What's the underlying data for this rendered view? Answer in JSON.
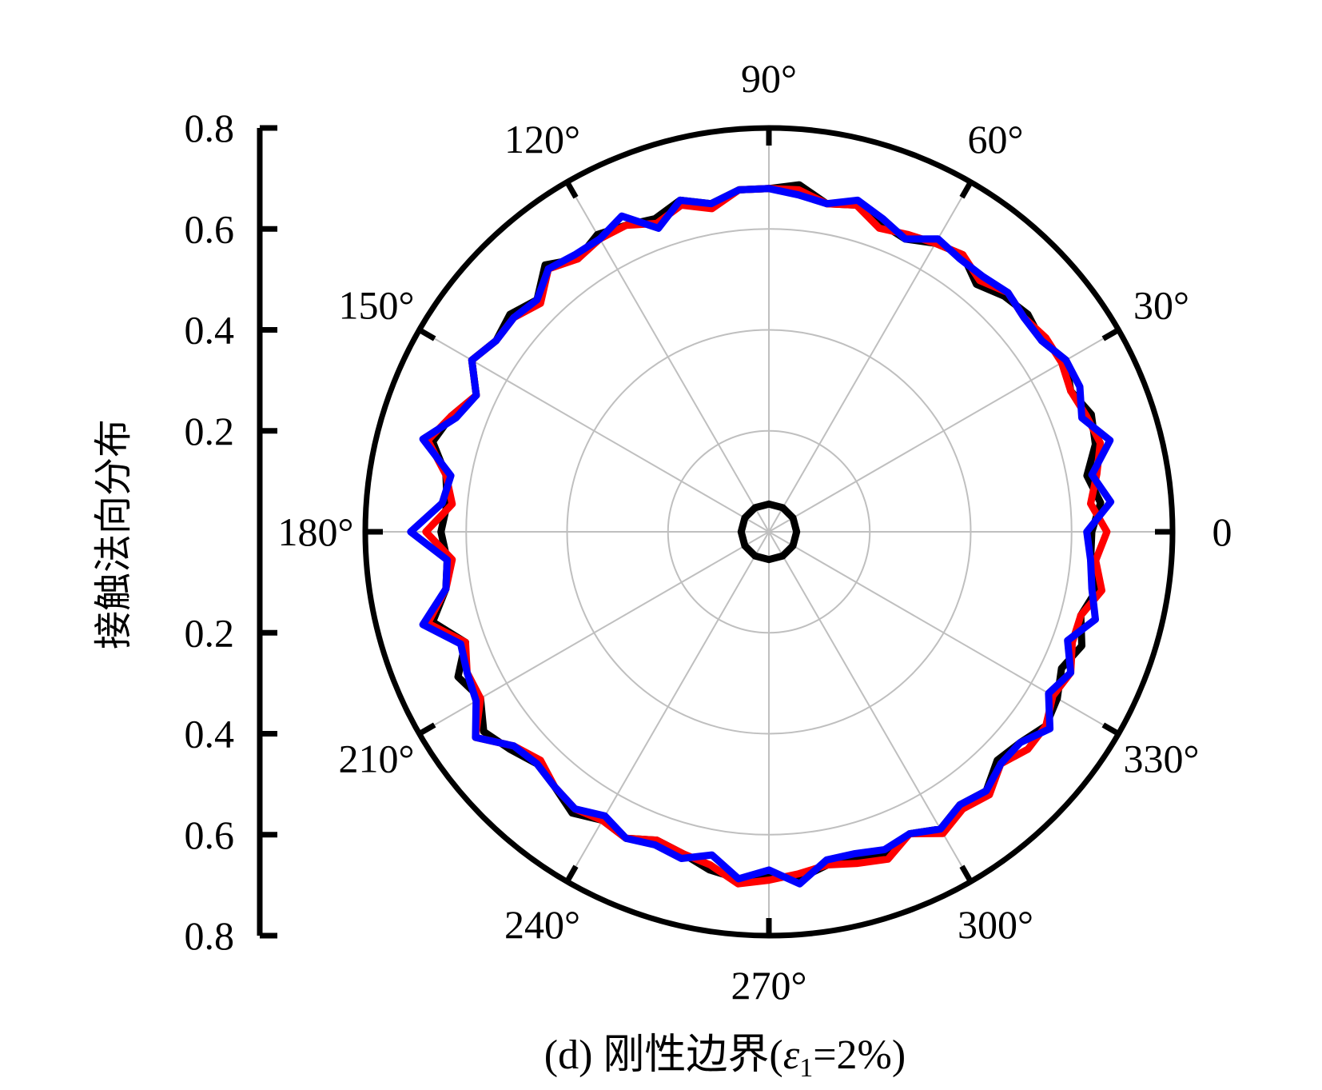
{
  "chart_data": {
    "type": "polar",
    "ylabel": "接触法向分布",
    "caption": {
      "prefix": "(d) 刚性边界(",
      "symbol": "ε",
      "subscript": "1",
      "suffix": "=2%)"
    },
    "radial_range": [
      0,
      0.8
    ],
    "radial_ticks": [
      0,
      0.2,
      0.4,
      0.6,
      0.8
    ],
    "radial_tick_labels_upper": [
      "0.8",
      "0.6",
      "0.4",
      "0.2"
    ],
    "radial_tick_labels_lower": [
      "0.2",
      "0.4",
      "0.6",
      "0.8"
    ],
    "angle_labels": [
      {
        "deg": 0,
        "text": "0"
      },
      {
        "deg": 30,
        "text": "30°"
      },
      {
        "deg": 60,
        "text": "60°"
      },
      {
        "deg": 90,
        "text": "90°"
      },
      {
        "deg": 120,
        "text": "120°"
      },
      {
        "deg": 150,
        "text": "150°"
      },
      {
        "deg": 180,
        "text": "180°"
      },
      {
        "deg": 210,
        "text": "210°"
      },
      {
        "deg": 240,
        "text": "240°"
      },
      {
        "deg": 270,
        "text": "270°"
      },
      {
        "deg": 300,
        "text": "300°"
      },
      {
        "deg": 330,
        "text": "330°"
      }
    ],
    "grid": true,
    "series": [
      {
        "color": "#000000",
        "angles": [
          0,
          5,
          10,
          15,
          20,
          25,
          30,
          35,
          40,
          45,
          50,
          55,
          60,
          65,
          70,
          75,
          80,
          85,
          90,
          95,
          100,
          105,
          110,
          115,
          120,
          125,
          130,
          135,
          140,
          145,
          150,
          155,
          160,
          165,
          170,
          175,
          180,
          185,
          190,
          195,
          200,
          205,
          210,
          215,
          220,
          225,
          230,
          235,
          240,
          245,
          250,
          255,
          260,
          265,
          270,
          275,
          280,
          285,
          290,
          295,
          300,
          305,
          310,
          315,
          320,
          325,
          330,
          335,
          340,
          345,
          350,
          355
        ],
        "values": [
          0.64,
          0.66,
          0.64,
          0.67,
          0.68,
          0.66,
          0.68,
          0.66,
          0.67,
          0.66,
          0.64,
          0.67,
          0.66,
          0.64,
          0.65,
          0.67,
          0.66,
          0.69,
          0.68,
          0.68,
          0.66,
          0.68,
          0.66,
          0.67,
          0.68,
          0.66,
          0.69,
          0.65,
          0.67,
          0.66,
          0.68,
          0.64,
          0.67,
          0.69,
          0.65,
          0.64,
          0.65,
          0.64,
          0.65,
          0.69,
          0.64,
          0.68,
          0.66,
          0.69,
          0.67,
          0.65,
          0.66,
          0.68,
          0.66,
          0.67,
          0.65,
          0.66,
          0.68,
          0.69,
          0.68,
          0.69,
          0.67,
          0.67,
          0.68,
          0.66,
          0.68,
          0.66,
          0.67,
          0.64,
          0.65,
          0.67,
          0.66,
          0.64,
          0.66,
          0.64,
          0.66,
          0.64
        ]
      },
      {
        "color": "#ff0000",
        "angles": [
          0,
          5,
          10,
          15,
          20,
          25,
          30,
          35,
          40,
          45,
          50,
          55,
          60,
          65,
          70,
          75,
          80,
          85,
          90,
          95,
          100,
          105,
          110,
          115,
          120,
          125,
          130,
          135,
          140,
          145,
          150,
          155,
          160,
          165,
          170,
          175,
          180,
          185,
          190,
          195,
          200,
          205,
          210,
          215,
          220,
          225,
          230,
          235,
          240,
          245,
          250,
          255,
          260,
          265,
          270,
          275,
          280,
          285,
          290,
          295,
          300,
          305,
          310,
          315,
          320,
          325,
          330,
          335,
          340,
          345,
          350,
          355
        ],
        "values": [
          0.67,
          0.64,
          0.66,
          0.68,
          0.67,
          0.66,
          0.67,
          0.67,
          0.66,
          0.67,
          0.65,
          0.67,
          0.66,
          0.65,
          0.64,
          0.67,
          0.66,
          0.68,
          0.68,
          0.68,
          0.65,
          0.67,
          0.65,
          0.67,
          0.67,
          0.66,
          0.68,
          0.64,
          0.66,
          0.66,
          0.68,
          0.64,
          0.67,
          0.7,
          0.65,
          0.63,
          0.68,
          0.63,
          0.65,
          0.7,
          0.64,
          0.66,
          0.66,
          0.71,
          0.66,
          0.64,
          0.66,
          0.67,
          0.66,
          0.67,
          0.65,
          0.66,
          0.67,
          0.7,
          0.69,
          0.68,
          0.67,
          0.68,
          0.69,
          0.66,
          0.69,
          0.67,
          0.68,
          0.65,
          0.67,
          0.67,
          0.65,
          0.66,
          0.64,
          0.64,
          0.67,
          0.65
        ]
      },
      {
        "color": "#0000ff",
        "angles": [
          0,
          5,
          10,
          15,
          20,
          25,
          30,
          35,
          40,
          45,
          50,
          55,
          60,
          65,
          70,
          75,
          80,
          85,
          90,
          95,
          100,
          105,
          110,
          115,
          120,
          125,
          130,
          135,
          140,
          145,
          150,
          155,
          160,
          165,
          170,
          175,
          180,
          185,
          190,
          195,
          200,
          205,
          210,
          215,
          220,
          225,
          230,
          235,
          240,
          245,
          250,
          255,
          260,
          265,
          270,
          275,
          280,
          285,
          290,
          295,
          300,
          305,
          310,
          315,
          320,
          325,
          330,
          335,
          340,
          345,
          350,
          355
        ],
        "values": [
          0.63,
          0.68,
          0.65,
          0.7,
          0.66,
          0.68,
          0.68,
          0.66,
          0.66,
          0.67,
          0.66,
          0.66,
          0.67,
          0.64,
          0.66,
          0.68,
          0.66,
          0.67,
          0.68,
          0.68,
          0.66,
          0.68,
          0.64,
          0.69,
          0.67,
          0.67,
          0.68,
          0.65,
          0.66,
          0.66,
          0.68,
          0.64,
          0.66,
          0.71,
          0.64,
          0.65,
          0.71,
          0.64,
          0.65,
          0.71,
          0.65,
          0.66,
          0.67,
          0.71,
          0.66,
          0.65,
          0.66,
          0.67,
          0.65,
          0.67,
          0.66,
          0.67,
          0.65,
          0.69,
          0.67,
          0.7,
          0.66,
          0.66,
          0.67,
          0.66,
          0.68,
          0.66,
          0.67,
          0.65,
          0.65,
          0.68,
          0.64,
          0.66,
          0.63,
          0.67,
          0.65,
          0.64
        ]
      },
      {
        "color": "#000000",
        "angles": [
          0,
          30,
          60,
          90,
          120,
          150,
          180,
          210,
          240,
          270,
          300,
          330
        ],
        "values": [
          0.055,
          0.055,
          0.055,
          0.055,
          0.055,
          0.055,
          0.055,
          0.055,
          0.055,
          0.055,
          0.055,
          0.055
        ]
      }
    ],
    "colors": {
      "axis": "#000000",
      "grid": "#bfbfbf"
    }
  }
}
